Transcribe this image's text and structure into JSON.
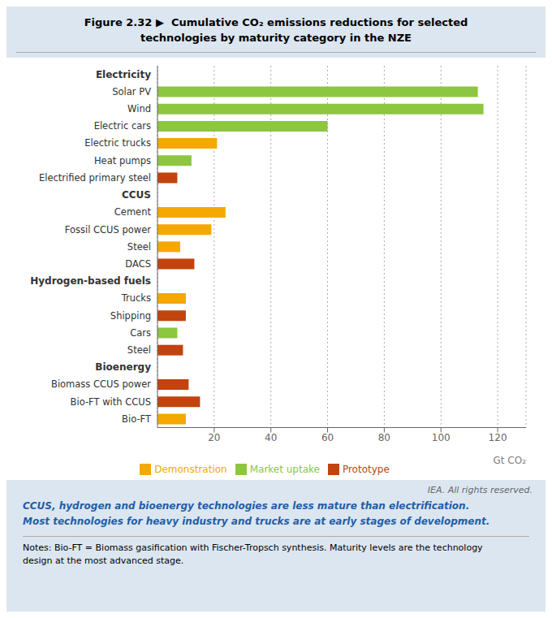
{
  "chart_data": {
    "type": "bar",
    "orientation": "horizontal",
    "stacked": true,
    "grid": true,
    "legend": "bottom",
    "title": "Figure 2.32 ▶  Cumulative CO₂ emissions reductions for selected\ntechnologies by maturity category in the NZE",
    "subtitle": "CCUS, hydrogen and bioenergy technologies are less mature than electrification.\nMost technologies for heavy industry and trucks are at early stages of development.",
    "annotations": [
      "IEA. All rights reserved.",
      "Notes: Bio-FT = Biomass gasification with Fischer-Tropsch synthesis. Maturity levels are the technology\ndesign at the most advanced stage."
    ],
    "x_label": "Gt CO₂",
    "xlim": [
      0,
      130
    ],
    "xticks": [
      20,
      40,
      60,
      80,
      100,
      120
    ],
    "categories": [
      "Electricity",
      "Solar PV",
      "Wind",
      "Electric cars",
      "Electric trucks",
      "Heat pumps",
      "Electrified primary steel",
      "CCUS",
      "Cement",
      "Fossil CCUS power",
      "Steel",
      "DACS",
      "Hydrogen-based fuels",
      "Trucks",
      "Shipping",
      "Cars",
      "Steel",
      "Bioenergy",
      "Biomass CCUS power",
      "Bio-FT with CCUS",
      "Bio-FT"
    ],
    "series": [
      {
        "name": "Market uptake",
        "color": "#8dc63f",
        "values": [
          null,
          113,
          115,
          60,
          null,
          12,
          null,
          null,
          null,
          null,
          null,
          null,
          null,
          null,
          null,
          7,
          null,
          null,
          null,
          null,
          null
        ]
      },
      {
        "name": "Demonstration",
        "color": "#f5a800",
        "values": [
          null,
          null,
          null,
          null,
          21,
          null,
          null,
          null,
          24,
          19,
          8,
          null,
          null,
          10,
          null,
          null,
          null,
          null,
          null,
          null,
          10
        ]
      },
      {
        "name": "Prototype",
        "color": "#c1440e",
        "values": [
          null,
          null,
          null,
          null,
          null,
          null,
          7,
          null,
          null,
          null,
          null,
          13,
          null,
          null,
          10,
          null,
          9,
          null,
          11,
          15,
          null
        ]
      }
    ]
  }
}
